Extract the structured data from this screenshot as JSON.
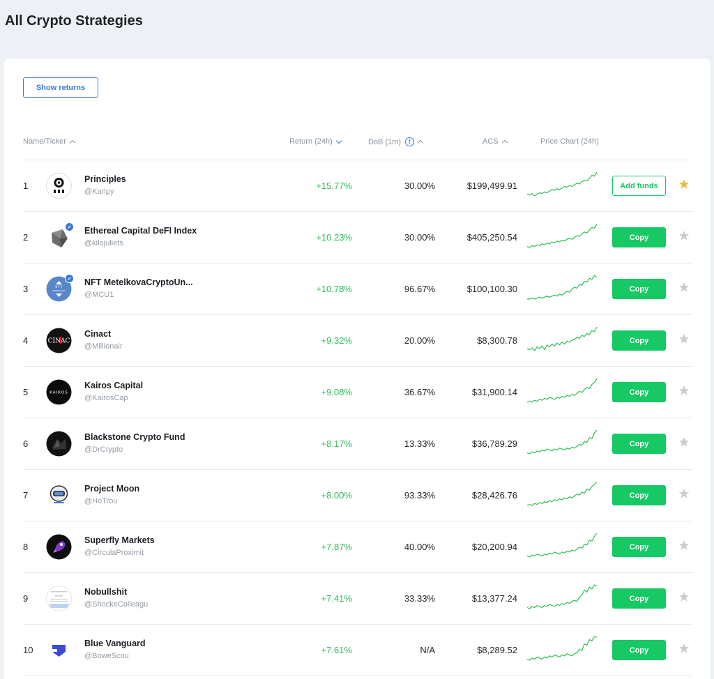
{
  "page": {
    "title": "All Crypto Strategies"
  },
  "toolbar": {
    "show_returns_label": "Show returns"
  },
  "table": {
    "headers": {
      "name": "Name/Ticker",
      "return": "Return (24h)",
      "dob": "DoB (1m)",
      "acs": "ACS",
      "chart": "Price Chart (24h)"
    },
    "colors": {
      "positive": "#2dbd57",
      "accent": "#3a7bd5",
      "copy_button": "#17c964",
      "star_active": "#f5b942",
      "star_inactive": "#c8cdd3"
    },
    "rows": [
      {
        "rank": "1",
        "name": "Principles",
        "handle": "@Karlpy",
        "return": "+15.77%",
        "dob": "30.00%",
        "acs": "$199,499.91",
        "action": "Add funds",
        "action_type": "add",
        "starred": true,
        "verified": false,
        "avatar_icon": "principles-logo-icon",
        "spark": [
          10,
          9,
          11,
          8,
          10,
          12,
          11,
          13,
          12,
          14,
          16,
          15,
          17,
          16,
          18,
          20,
          19,
          21,
          20,
          22,
          24,
          23,
          26,
          28,
          27,
          30,
          34,
          33,
          38
        ]
      },
      {
        "rank": "2",
        "name": "Ethereal Capital DeFI Index",
        "handle": "@kilojuliets",
        "return": "+10.23%",
        "dob": "30.00%",
        "acs": "$405,250.54",
        "action": "Copy",
        "action_type": "copy",
        "starred": false,
        "verified": true,
        "avatar_icon": "ethereal-cube-icon",
        "spark": [
          10,
          9,
          11,
          10,
          12,
          11,
          13,
          12,
          14,
          13,
          15,
          14,
          16,
          15,
          17,
          16,
          18,
          19,
          18,
          20,
          22,
          21,
          24,
          26,
          25,
          28,
          31,
          30,
          35
        ]
      },
      {
        "rank": "3",
        "name": "NFT MetelkovaCryptoUn...",
        "handle": "@MCU1",
        "return": "+10.78%",
        "dob": "96.67%",
        "acs": "$100,100.30",
        "action": "Copy",
        "action_type": "copy",
        "starred": false,
        "verified": true,
        "avatar_icon": "nft-metelkova-icon",
        "spark": [
          10,
          10,
          11,
          10,
          11,
          12,
          11,
          12,
          13,
          12,
          13,
          14,
          13,
          15,
          14,
          16,
          18,
          17,
          20,
          22,
          21,
          25,
          24,
          28,
          27,
          31,
          30,
          34,
          32
        ]
      },
      {
        "rank": "4",
        "name": "Cinact",
        "handle": "@Millionair",
        "return": "+9.32%",
        "dob": "20.00%",
        "acs": "$8,300.78",
        "action": "Copy",
        "action_type": "copy",
        "starred": false,
        "verified": false,
        "avatar_icon": "cinact-logo-icon",
        "spark": [
          12,
          11,
          13,
          10,
          14,
          12,
          15,
          11,
          16,
          14,
          17,
          15,
          18,
          16,
          19,
          17,
          20,
          19,
          21,
          22,
          24,
          23,
          26,
          25,
          28,
          27,
          31,
          30,
          35
        ]
      },
      {
        "rank": "5",
        "name": "Kairos Capital",
        "handle": "@KairosCap",
        "return": "+9.08%",
        "dob": "36.67%",
        "acs": "$31,900.14",
        "action": "Copy",
        "action_type": "copy",
        "starred": false,
        "verified": false,
        "avatar_icon": "kairos-logo-icon",
        "spark": [
          10,
          11,
          10,
          12,
          11,
          13,
          12,
          14,
          13,
          15,
          14,
          13,
          15,
          14,
          16,
          15,
          17,
          16,
          18,
          17,
          19,
          21,
          20,
          23,
          25,
          24,
          28,
          30,
          34
        ]
      },
      {
        "rank": "6",
        "name": "Blackstone Crypto Fund",
        "handle": "@DrCrypto",
        "return": "+8.17%",
        "dob": "13.33%",
        "acs": "$36,789.29",
        "action": "Copy",
        "action_type": "copy",
        "starred": false,
        "verified": false,
        "avatar_icon": "blackstone-logo-icon",
        "spark": [
          12,
          11,
          13,
          12,
          14,
          13,
          15,
          14,
          16,
          15,
          14,
          16,
          15,
          17,
          16,
          15,
          17,
          16,
          18,
          17,
          19,
          21,
          20,
          24,
          23,
          28,
          27,
          33,
          36
        ]
      },
      {
        "rank": "7",
        "name": "Project Moon",
        "handle": "@HoTrou",
        "return": "+8.00%",
        "dob": "93.33%",
        "acs": "$28,426.76",
        "action": "Copy",
        "action_type": "copy",
        "starred": false,
        "verified": false,
        "avatar_icon": "astronaut-icon",
        "spark": [
          10,
          11,
          10,
          12,
          11,
          13,
          12,
          14,
          13,
          15,
          14,
          16,
          15,
          17,
          16,
          18,
          17,
          19,
          18,
          20,
          22,
          21,
          24,
          23,
          27,
          26,
          30,
          32,
          35
        ]
      },
      {
        "rank": "8",
        "name": "Superfly Markets",
        "handle": "@CirculaProximit",
        "return": "+7.87%",
        "dob": "40.00%",
        "acs": "$20,200.94",
        "action": "Copy",
        "action_type": "copy",
        "starred": false,
        "verified": false,
        "avatar_icon": "rocket-icon",
        "spark": [
          11,
          10,
          12,
          11,
          13,
          12,
          11,
          13,
          12,
          14,
          13,
          15,
          14,
          13,
          15,
          14,
          16,
          15,
          17,
          16,
          18,
          20,
          19,
          23,
          22,
          27,
          26,
          31,
          34
        ]
      },
      {
        "rank": "9",
        "name": "Nobullshit",
        "handle": "@ShockeColleagu",
        "return": "+7.41%",
        "dob": "33.33%",
        "acs": "$13,377.24",
        "action": "Copy",
        "action_type": "copy",
        "starred": false,
        "verified": false,
        "avatar_icon": "nobullshit-logo-icon",
        "spark": [
          10,
          9,
          11,
          10,
          12,
          11,
          10,
          12,
          11,
          13,
          12,
          11,
          13,
          12,
          14,
          13,
          15,
          14,
          16,
          17,
          16,
          20,
          22,
          27,
          25,
          30,
          28,
          32,
          31
        ]
      },
      {
        "rank": "10",
        "name": "Blue Vanguard",
        "handle": "@BoweScou",
        "return": "+7.61%",
        "dob": "N/A",
        "acs": "$8,289.52",
        "action": "Copy",
        "action_type": "copy",
        "starred": false,
        "verified": false,
        "avatar_icon": "blue-vanguard-icon",
        "spark": [
          10,
          9,
          11,
          10,
          12,
          11,
          10,
          12,
          11,
          13,
          12,
          14,
          13,
          12,
          14,
          13,
          15,
          14,
          13,
          15,
          16,
          19,
          18,
          24,
          23,
          28,
          27,
          31,
          30
        ]
      }
    ]
  }
}
